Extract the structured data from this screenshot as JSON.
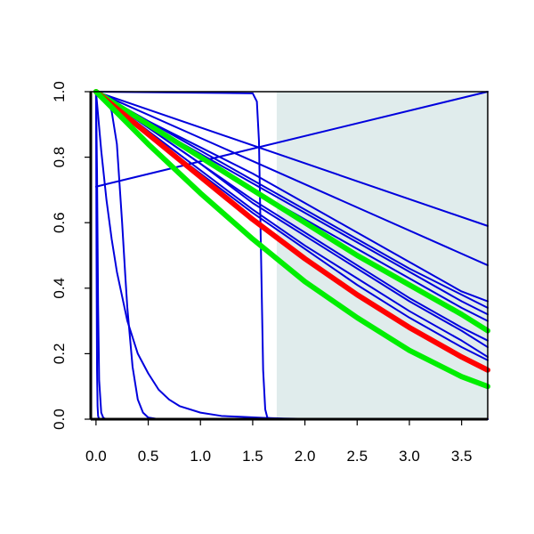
{
  "chart_data": {
    "type": "line",
    "title": "",
    "xlabel": "",
    "ylabel": "",
    "xlim": [
      -0.05,
      3.75
    ],
    "ylim": [
      0,
      1
    ],
    "x_ticks": [
      0.0,
      0.5,
      1.0,
      1.5,
      2.0,
      2.5,
      3.0,
      3.5
    ],
    "x_tick_labels": [
      "0.0",
      "0.5",
      "1.0",
      "1.5",
      "2.0",
      "2.5",
      "3.0",
      "3.5"
    ],
    "y_ticks": [
      0.0,
      0.2,
      0.4,
      0.6,
      0.8,
      1.0
    ],
    "y_tick_labels": [
      "0.0",
      "0.2",
      "0.4",
      "0.6",
      "0.8",
      "1.0"
    ],
    "grid": false,
    "legend": "none",
    "shaded_region": {
      "x_start": 1.73,
      "x_end": 3.75,
      "color": "#e0ecec"
    },
    "colors": {
      "blue": "#0000dd",
      "red": "#ff0000",
      "green": "#00ee00"
    },
    "series": [
      {
        "color": "blue",
        "x": [
          0.0,
          3.75
        ],
        "y": [
          1.0,
          0.59
        ]
      },
      {
        "color": "blue",
        "x": [
          0.0,
          3.75
        ],
        "y": [
          1.0,
          0.47
        ]
      },
      {
        "color": "blue",
        "x": [
          0.0,
          3.75
        ],
        "y": [
          0.71,
          1.0
        ]
      },
      {
        "color": "blue",
        "x": [
          0.0,
          0.5,
          1.0,
          1.5,
          2.0,
          2.5,
          3.0,
          3.5,
          3.75
        ],
        "y": [
          1.0,
          0.91,
          0.83,
          0.75,
          0.66,
          0.57,
          0.48,
          0.39,
          0.36
        ]
      },
      {
        "color": "blue",
        "x": [
          0.0,
          0.5,
          1.0,
          1.5,
          2.0,
          2.5,
          3.0,
          3.5,
          3.75
        ],
        "y": [
          1.0,
          0.91,
          0.82,
          0.73,
          0.64,
          0.55,
          0.46,
          0.38,
          0.34
        ]
      },
      {
        "color": "blue",
        "x": [
          0.0,
          0.5,
          1.0,
          1.5,
          2.0,
          2.5,
          3.0,
          3.5,
          3.75
        ],
        "y": [
          1.0,
          0.9,
          0.81,
          0.72,
          0.63,
          0.54,
          0.45,
          0.36,
          0.32
        ]
      },
      {
        "color": "blue",
        "x": [
          0.0,
          0.5,
          1.0,
          1.5,
          2.0,
          2.5,
          3.0,
          3.5,
          3.75
        ],
        "y": [
          1.0,
          0.9,
          0.8,
          0.7,
          0.61,
          0.52,
          0.43,
          0.34,
          0.3
        ]
      },
      {
        "color": "blue",
        "x": [
          0.0,
          0.5,
          1.0,
          1.5,
          2.0,
          2.5,
          3.0,
          3.5,
          3.75
        ],
        "y": [
          1.0,
          0.89,
          0.78,
          0.67,
          0.57,
          0.47,
          0.37,
          0.28,
          0.24
        ]
      },
      {
        "color": "blue",
        "x": [
          0.0,
          0.5,
          1.0,
          1.5,
          2.0,
          2.5,
          3.0,
          3.5,
          3.75
        ],
        "y": [
          1.0,
          0.89,
          0.78,
          0.66,
          0.56,
          0.46,
          0.36,
          0.27,
          0.22
        ]
      },
      {
        "color": "blue",
        "x": [
          0.0,
          0.5,
          1.0,
          1.5,
          2.0,
          2.5,
          3.0,
          3.5,
          3.75
        ],
        "y": [
          1.0,
          0.88,
          0.76,
          0.64,
          0.53,
          0.43,
          0.33,
          0.24,
          0.19
        ]
      },
      {
        "color": "blue",
        "x": [
          0.0,
          0.5,
          1.0,
          1.5,
          2.0,
          2.5,
          3.0,
          3.5,
          3.75
        ],
        "y": [
          1.0,
          0.87,
          0.75,
          0.63,
          0.52,
          0.41,
          0.31,
          0.22,
          0.18
        ]
      },
      {
        "color": "blue",
        "x": [
          0.0,
          0.05,
          0.1,
          0.15,
          0.2,
          0.3,
          0.4,
          0.5,
          0.6,
          0.7,
          0.8,
          1.0,
          1.2,
          1.4,
          1.6,
          1.8,
          2.0,
          2.5,
          3.0,
          3.75
        ],
        "y": [
          1.0,
          0.82,
          0.67,
          0.55,
          0.45,
          0.3,
          0.2,
          0.14,
          0.09,
          0.06,
          0.04,
          0.02,
          0.01,
          0.007,
          0.004,
          0.002,
          0.001,
          0.0,
          0.0,
          0.0
        ]
      },
      {
        "color": "blue",
        "x": [
          0.0,
          0.1,
          0.15,
          0.2,
          0.25,
          0.28,
          0.3,
          0.35,
          0.4,
          0.45,
          0.5,
          0.6,
          0.8,
          3.75
        ],
        "y": [
          1.0,
          0.98,
          0.94,
          0.84,
          0.6,
          0.44,
          0.34,
          0.16,
          0.06,
          0.02,
          0.005,
          0.0,
          0.0,
          0.0
        ]
      },
      {
        "color": "blue",
        "x": [
          0.0,
          1.5,
          1.54,
          1.56,
          1.58,
          1.6,
          1.62,
          1.64,
          1.7,
          3.75
        ],
        "y": [
          1.0,
          0.995,
          0.97,
          0.85,
          0.5,
          0.15,
          0.03,
          0.005,
          0.0,
          0.0
        ]
      },
      {
        "color": "blue",
        "x": [
          0.0,
          0.01,
          0.02,
          0.03,
          0.05,
          0.07,
          0.1,
          3.75
        ],
        "y": [
          1.0,
          0.75,
          0.35,
          0.12,
          0.02,
          0.004,
          0.0,
          0.0
        ]
      },
      {
        "color": "blue",
        "x": [
          0.0,
          0.005,
          0.01,
          0.015,
          0.02,
          0.03,
          3.75
        ],
        "y": [
          1.0,
          0.5,
          0.15,
          0.04,
          0.01,
          0.0,
          0.0
        ]
      },
      {
        "color": "green",
        "x": [
          0.0,
          0.5,
          1.0,
          1.5,
          2.0,
          2.5,
          3.0,
          3.5,
          3.75
        ],
        "y": [
          1.0,
          0.9,
          0.8,
          0.7,
          0.6,
          0.5,
          0.41,
          0.32,
          0.27
        ]
      },
      {
        "color": "red",
        "x": [
          0.0,
          0.5,
          1.0,
          1.5,
          2.0,
          2.5,
          3.0,
          3.5,
          3.75
        ],
        "y": [
          1.0,
          0.87,
          0.74,
          0.61,
          0.49,
          0.38,
          0.28,
          0.19,
          0.15
        ]
      },
      {
        "color": "green",
        "x": [
          0.0,
          0.5,
          1.0,
          1.5,
          2.0,
          2.5,
          3.0,
          3.5,
          3.75
        ],
        "y": [
          1.0,
          0.84,
          0.69,
          0.55,
          0.42,
          0.31,
          0.21,
          0.13,
          0.1
        ]
      }
    ]
  }
}
